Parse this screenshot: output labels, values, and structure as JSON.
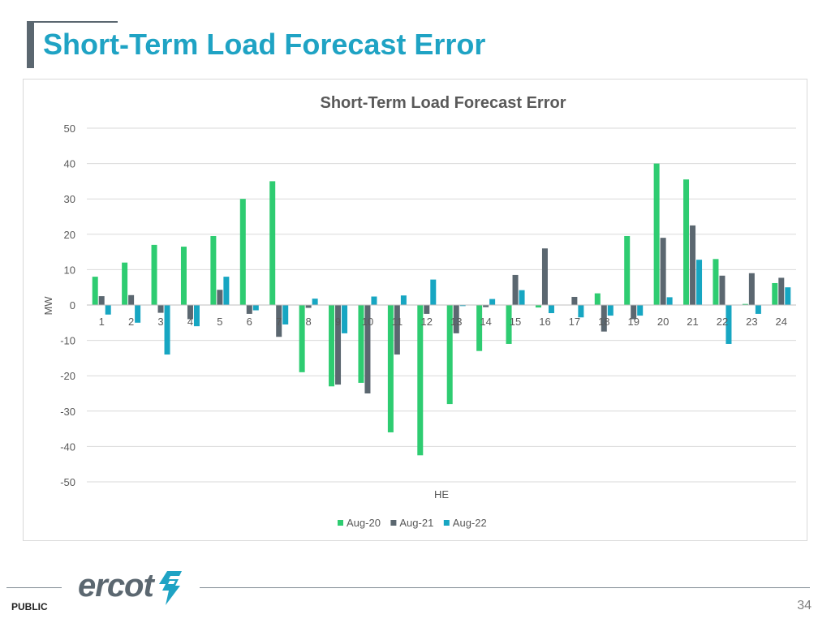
{
  "slide": {
    "title": "Short-Term Load Forecast Error",
    "footer_label": "PUBLIC",
    "page_number": "34",
    "logo_text": "ercot"
  },
  "chart_data": {
    "type": "bar",
    "title": "Short-Term Load Forecast Error",
    "xlabel": "HE",
    "ylabel": "MW",
    "ylim": [
      -50,
      50
    ],
    "yticks": [
      50,
      40,
      30,
      20,
      10,
      0,
      -10,
      -20,
      -30,
      -40,
      -50
    ],
    "grid": true,
    "legend_position": "bottom",
    "categories": [
      "1",
      "2",
      "3",
      "4",
      "5",
      "6",
      "7",
      "8",
      "9",
      "10",
      "11",
      "12",
      "13",
      "14",
      "15",
      "16",
      "17",
      "18",
      "19",
      "20",
      "21",
      "22",
      "23",
      "24"
    ],
    "series": [
      {
        "name": "Aug-20",
        "color": "#2ecc71",
        "values": [
          8,
          12,
          17,
          16.5,
          19.5,
          30,
          35,
          -19,
          -23,
          -22,
          -36,
          -42.5,
          -28,
          -13,
          -11,
          -0.7,
          0,
          3.3,
          19.5,
          40,
          35.5,
          13,
          0.3,
          6.2
        ]
      },
      {
        "name": "Aug-21",
        "color": "#5b6770",
        "values": [
          2.5,
          2.8,
          -2.2,
          -4,
          4.3,
          -2.5,
          -9,
          -0.8,
          -22.5,
          -25,
          -14,
          -2.5,
          -8,
          -0.6,
          8.5,
          16,
          2.3,
          -7.5,
          -4,
          19,
          22.5,
          8.3,
          9,
          7.7
        ]
      },
      {
        "name": "Aug-22",
        "color": "#17a6c2",
        "values": [
          -2.7,
          -5,
          -14,
          -6,
          8,
          -1.5,
          -5.5,
          1.8,
          -8,
          2.4,
          2.7,
          7.2,
          -0.3,
          1.7,
          4.2,
          -2.3,
          -3.5,
          -3,
          -3,
          2.2,
          12.8,
          -11,
          -2.5,
          5
        ]
      }
    ]
  }
}
